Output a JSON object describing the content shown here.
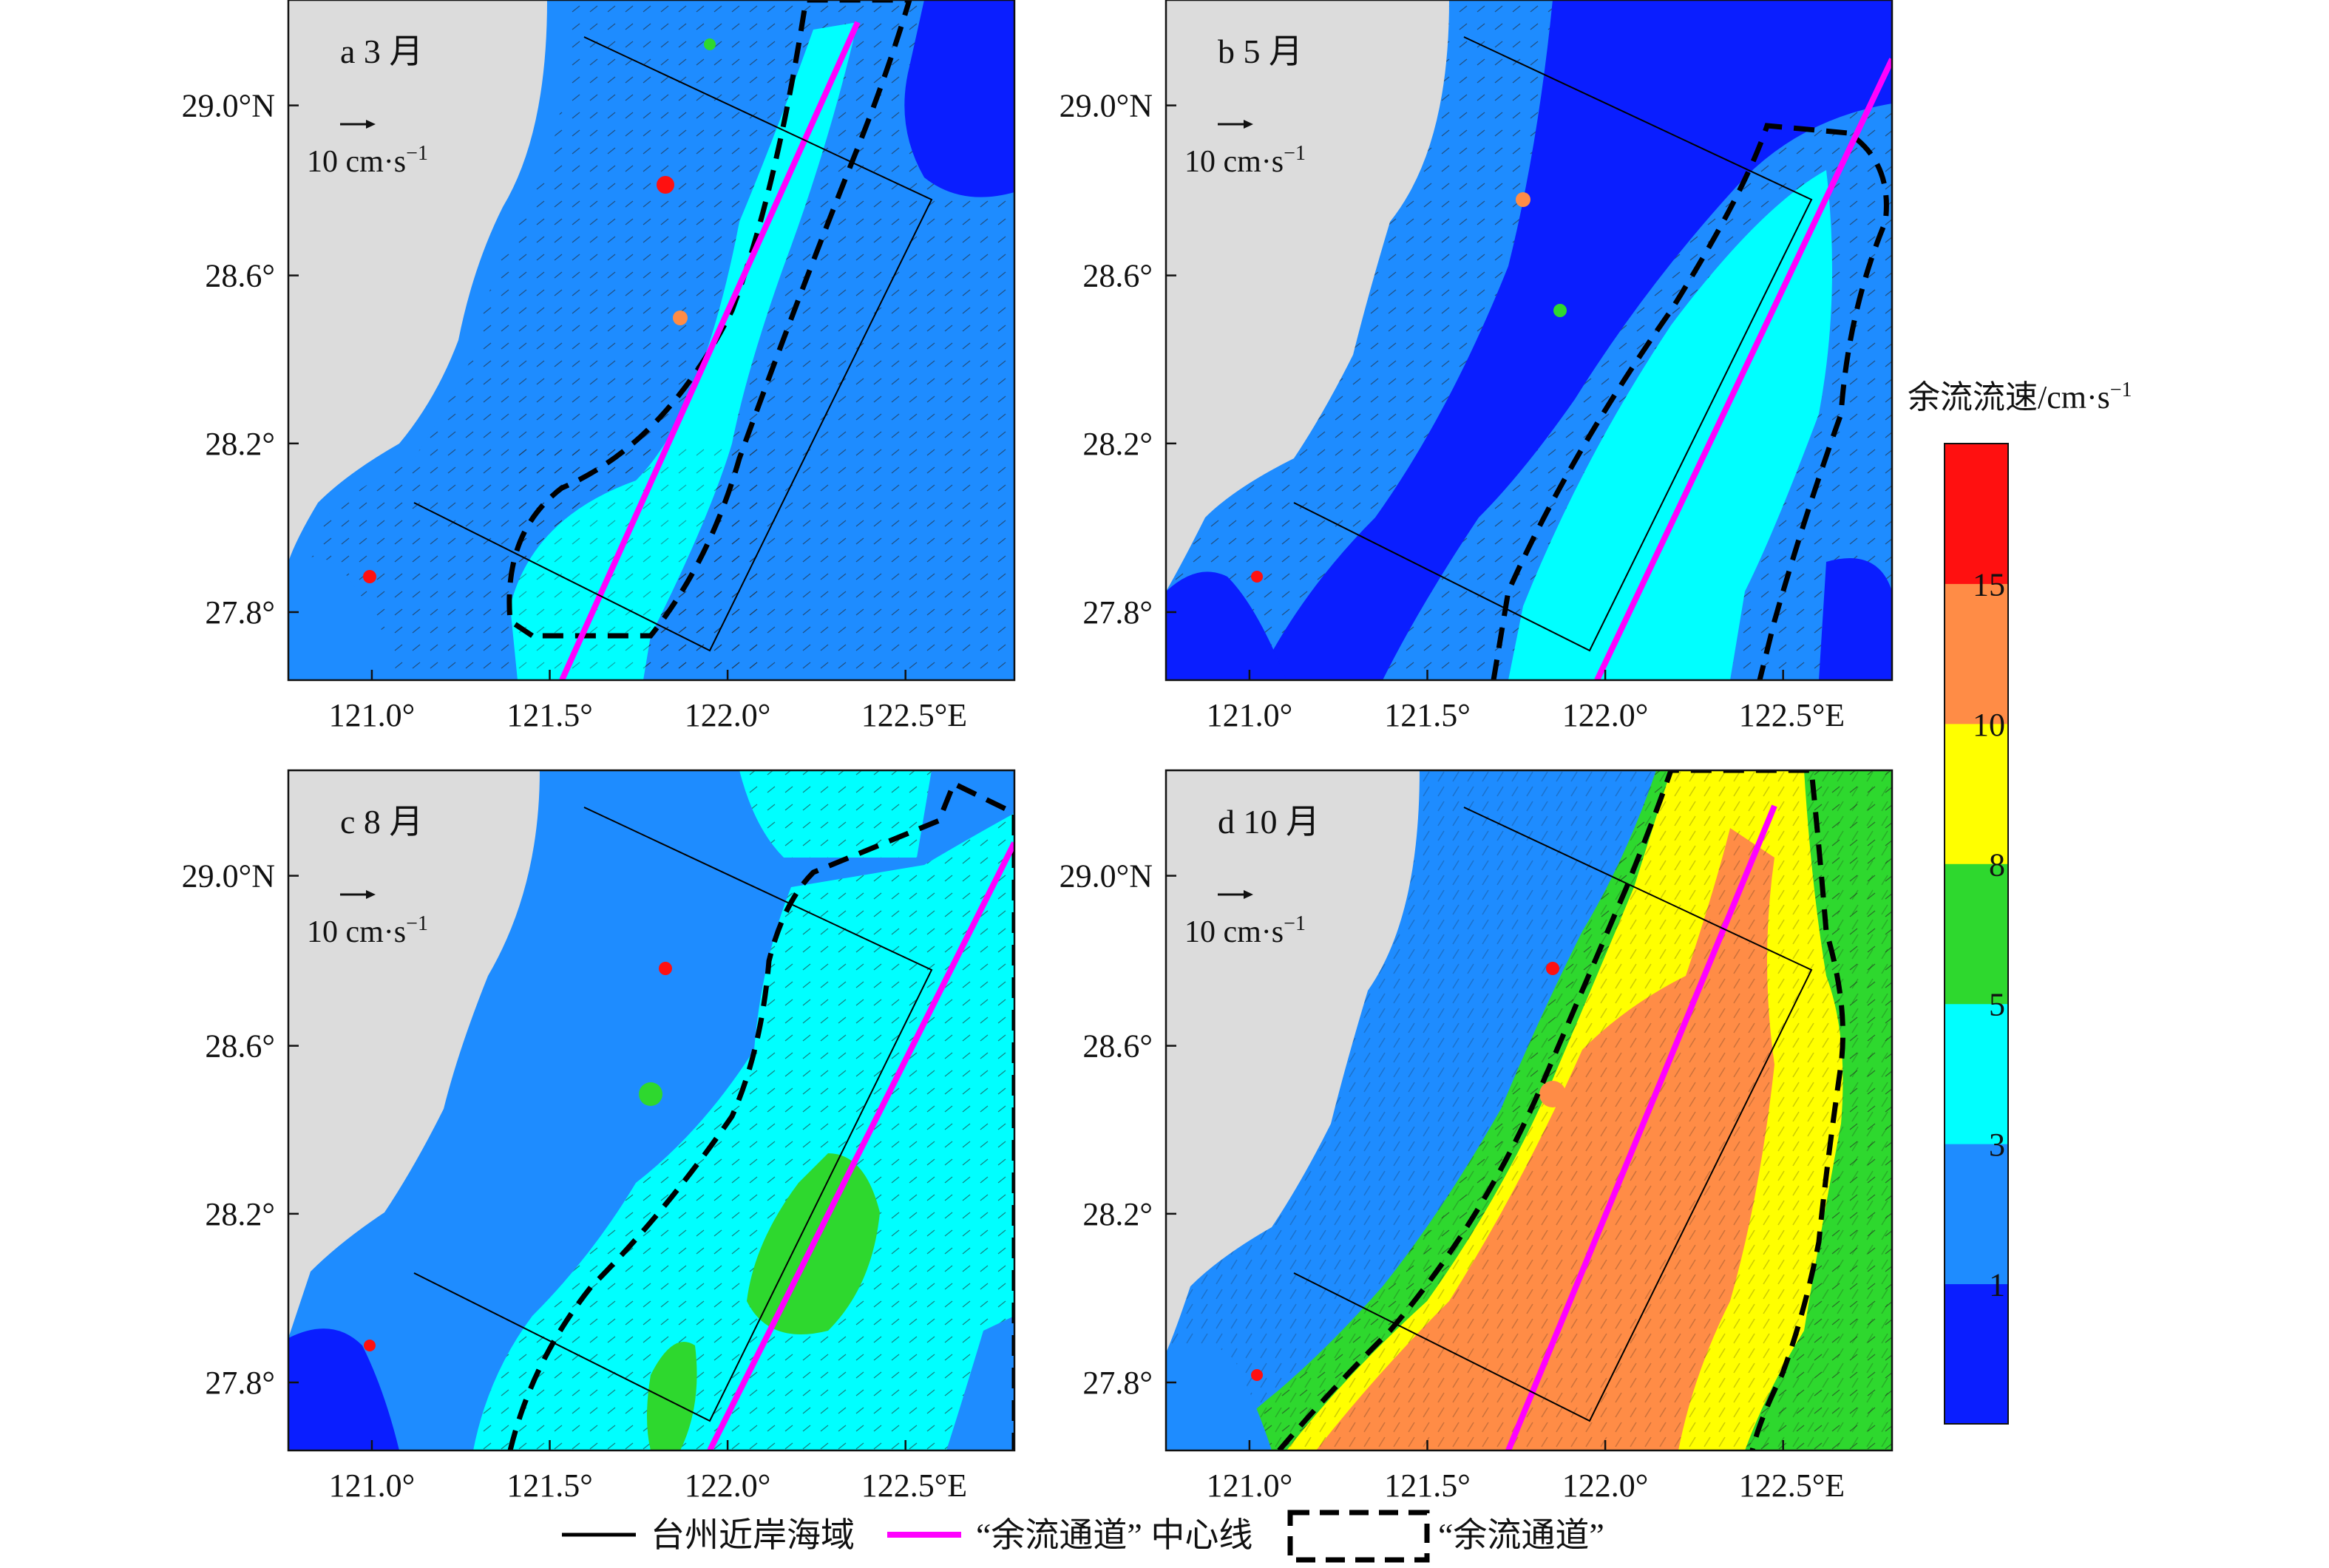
{
  "panels": [
    {
      "id": "a",
      "label": "a 3 月"
    },
    {
      "id": "b",
      "label": "b 5 月"
    },
    {
      "id": "c",
      "label": "c 8 月"
    },
    {
      "id": "d",
      "label": "d 10 月"
    }
  ],
  "axes": {
    "x_ticks": [
      "121.0°",
      "121.5°",
      "122.0°",
      "122.5°E"
    ],
    "y_ticks": [
      "29.0°N",
      "28.6°",
      "28.2°",
      "27.8°"
    ]
  },
  "scale_arrow": {
    "label": "10 cm·s",
    "superscript": "−1"
  },
  "colorbar": {
    "title": "余流流速/cm·s",
    "title_superscript": "−1",
    "tick_labels": [
      "1",
      "3",
      "5",
      "8",
      "10",
      "15"
    ],
    "colors": [
      "#0a1eff",
      "#1e8cff",
      "#00ffff",
      "#2ed82e",
      "#ffff00",
      "#ff8c46",
      "#ff1010"
    ]
  },
  "legend": {
    "items": [
      {
        "label": "台州近岸海域",
        "color": "#000000",
        "style": "solid-thin"
      },
      {
        "label": "“余流通道” 中心线",
        "color": "#ff00ff",
        "style": "solid-thick"
      },
      {
        "label": "“余流通道”",
        "color": "#000000",
        "style": "dashed-box"
      }
    ]
  },
  "land_color": "#dcdcdc"
}
